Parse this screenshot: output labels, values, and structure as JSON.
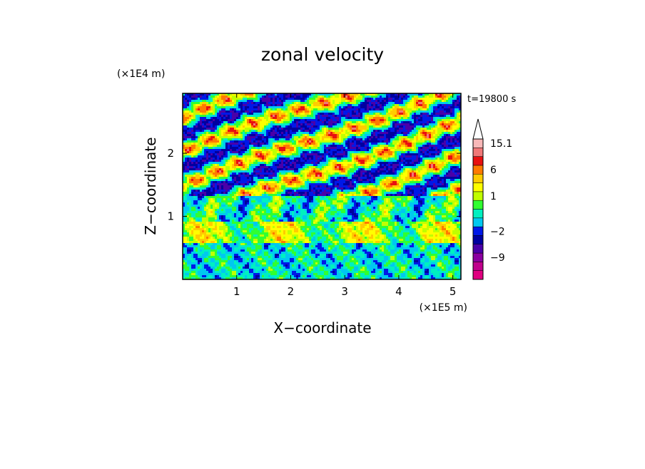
{
  "chart_data": {
    "type": "heatmap",
    "title": "zonal velocity",
    "xlabel": "X−coordinate",
    "ylabel": "Z−coordinate",
    "x_scale_label": "(×1E5 m)",
    "y_scale_label": "(×1E4 m)",
    "time_label": "t=19800 s",
    "xlim": [
      0,
      5.15
    ],
    "ylim": [
      0,
      2.95
    ],
    "x_ticks": [
      1,
      2,
      3,
      4,
      5
    ],
    "y_ticks": [
      1,
      2
    ],
    "colorbar": {
      "extend": "max",
      "levels": [
        {
          "label": "",
          "color": "#e0007f"
        },
        {
          "label": "",
          "color": "#c0008c"
        },
        {
          "label": "−9",
          "color": "#8b00a0"
        },
        {
          "label": "",
          "color": "#4a00a8"
        },
        {
          "label": "",
          "color": "#0000a0"
        },
        {
          "label": "−2",
          "color": "#0018e8"
        },
        {
          "label": "",
          "color": "#00c8f0"
        },
        {
          "label": "",
          "color": "#00f0c0"
        },
        {
          "label": "",
          "color": "#30ff30"
        },
        {
          "label": "1",
          "color": "#c0ff00"
        },
        {
          "label": "",
          "color": "#ffff00"
        },
        {
          "label": "",
          "color": "#ffcc00"
        },
        {
          "label": "6",
          "color": "#ff7a00"
        },
        {
          "label": "",
          "color": "#e81010"
        },
        {
          "label": "",
          "color": "#f07878"
        },
        {
          "label": "15.1",
          "color": "#f8b8b8"
        }
      ]
    },
    "field_note_grid": "synthetic turbulent field; banded structure: mixed low layer, orange band near z≈0.5, blue/orange shear bands above z≈1.2"
  }
}
